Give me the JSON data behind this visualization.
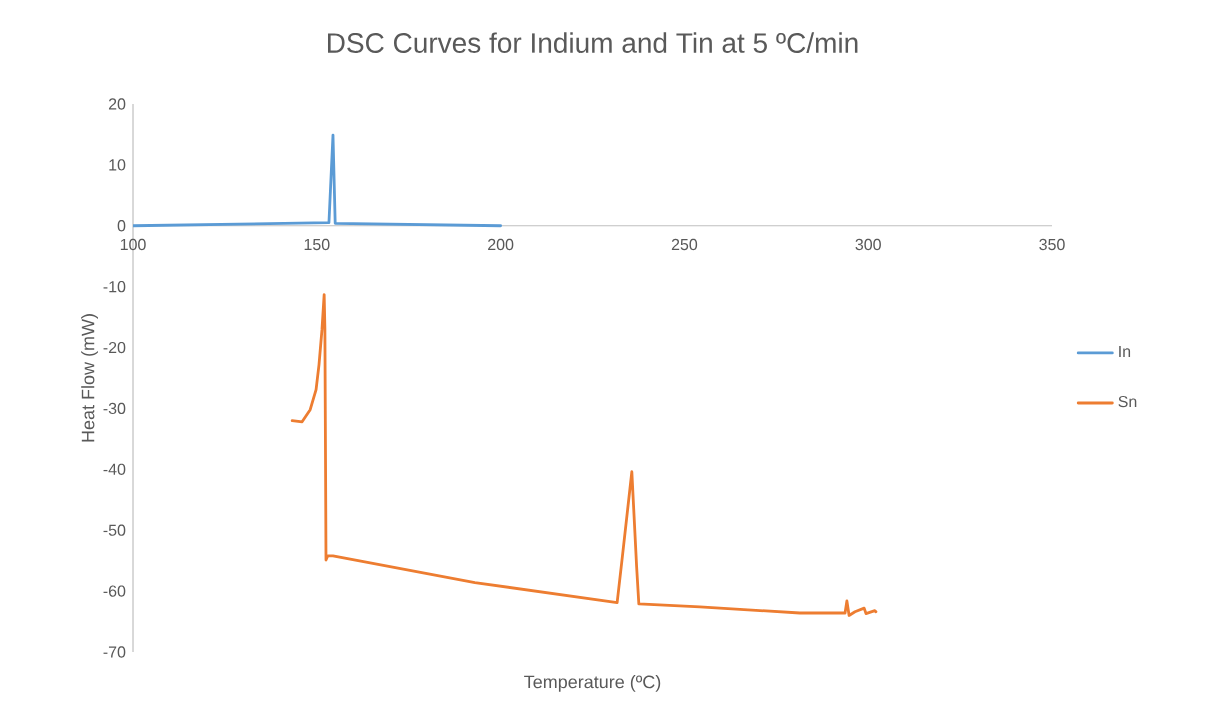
{
  "chart_data": {
    "type": "line",
    "title": "DSC Curves for Indium and Tin at 5 ºC/min",
    "xlabel": "Temperature (ºC)",
    "ylabel": "Heat Flow (mW)",
    "xlim": [
      100,
      350
    ],
    "xticks": [
      100,
      150,
      200,
      250,
      300,
      350
    ],
    "ylim": [
      -70,
      20
    ],
    "yticks": [
      -70,
      -60,
      -50,
      -40,
      -30,
      -20,
      -10,
      0,
      10,
      20
    ],
    "legend": "right",
    "series": [
      {
        "name": "In",
        "color": "#5b9bd5",
        "x": [
          100,
          153.3,
          154.4,
          155,
          200
        ],
        "values": [
          0,
          0.5,
          14.9,
          0.4,
          0
        ]
      },
      {
        "name": "Sn",
        "color": "#ed7d31",
        "x": [
          143.3,
          146,
          148.2,
          149.8,
          150.6,
          151.4,
          152,
          152.2,
          152.5,
          153,
          154.4,
          193,
          231.7,
          233,
          235.7,
          237,
          237.6,
          254.2,
          281.4,
          293.7,
          294.2,
          294.8,
          296.4,
          298.9,
          299.4,
          301.8,
          302.1
        ],
        "values": [
          -32,
          -32.2,
          -30.2,
          -26.9,
          -22.8,
          -17.1,
          -11.3,
          -17,
          -54.9,
          -54.2,
          -54.2,
          -58.6,
          -61.9,
          -55,
          -40.4,
          -56,
          -62.1,
          -62.6,
          -63.6,
          -63.6,
          -61.6,
          -64,
          -63.4,
          -62.8,
          -63.7,
          -63.2,
          -63.4
        ]
      }
    ]
  }
}
